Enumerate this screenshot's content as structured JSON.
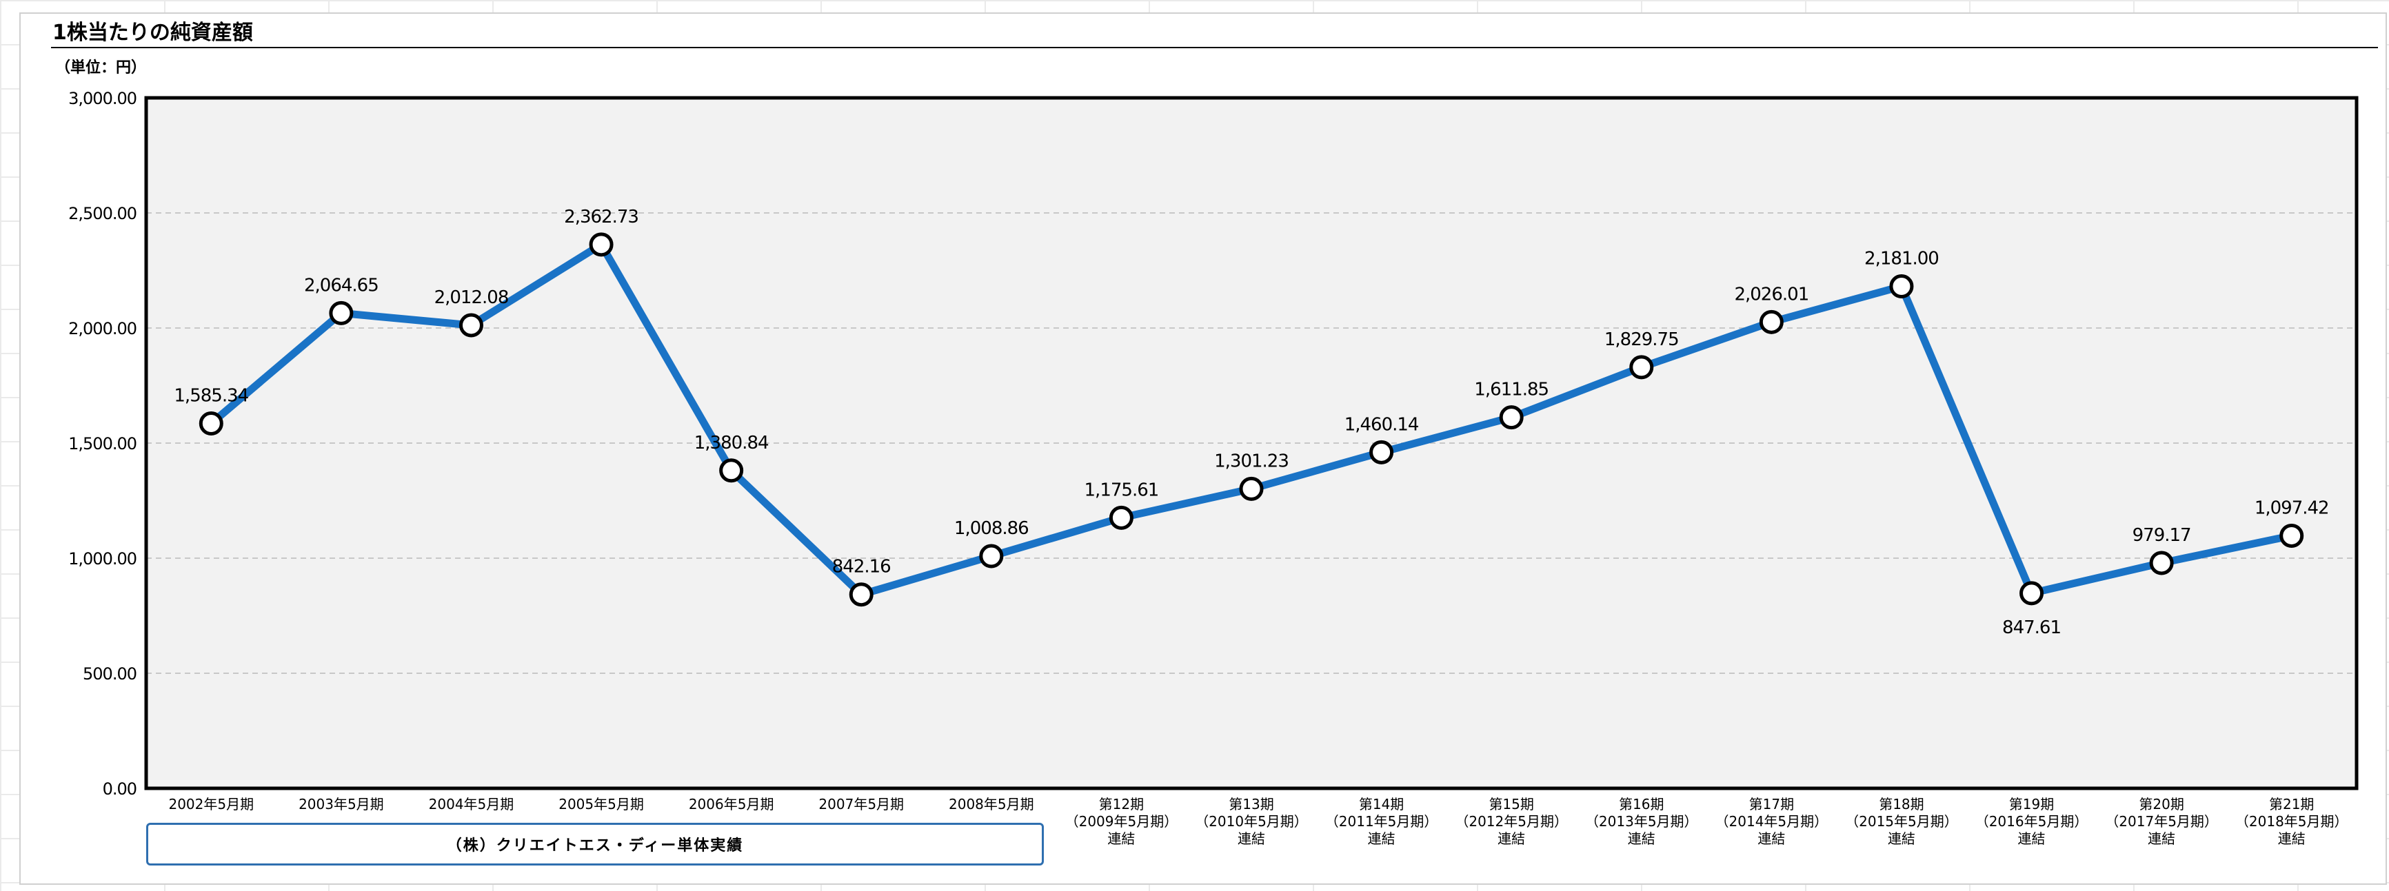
{
  "page": {
    "title": "1株当たりの純資産額",
    "unit_label": "（単位：円）",
    "group_box_label": "（株）クリエイトエス・ディー単体実績"
  },
  "chart_data": {
    "type": "line",
    "title": "1株当たりの純資産額",
    "ylabel": "（単位：円）",
    "xlabel": "",
    "ylim": [
      0,
      3000
    ],
    "yticks": [
      0,
      500,
      1000,
      1500,
      2000,
      2500,
      3000
    ],
    "ytick_labels": [
      "0.00",
      "500.00",
      "1,000.00",
      "1,500.00",
      "2,000.00",
      "2,500.00",
      "3,000.00"
    ],
    "grid": true,
    "line_color": "#1a73c6",
    "marker_fill": "#ffffff",
    "plot_bg": "#f2f2f2",
    "categories": [
      [
        "2002年5月期"
      ],
      [
        "2003年5月期"
      ],
      [
        "2004年5月期"
      ],
      [
        "2005年5月期"
      ],
      [
        "2006年5月期"
      ],
      [
        "2007年5月期"
      ],
      [
        "2008年5月期"
      ],
      [
        "第12期",
        "（2009年5月期）",
        "連結"
      ],
      [
        "第13期",
        "（2010年5月期）",
        "連結"
      ],
      [
        "第14期",
        "（2011年5月期）",
        "連結"
      ],
      [
        "第15期",
        "（2012年5月期）",
        "連結"
      ],
      [
        "第16期",
        "（2013年5月期）",
        "連結"
      ],
      [
        "第17期",
        "（2014年5月期）",
        "連結"
      ],
      [
        "第18期",
        "（2015年5月期）",
        "連結"
      ],
      [
        "第19期",
        "（2016年5月期）",
        "連結"
      ],
      [
        "第20期",
        "（2017年5月期）",
        "連結"
      ],
      [
        "第21期",
        "（2018年5月期）",
        "連結"
      ]
    ],
    "series": [
      {
        "name": "1株当たりの純資産額",
        "values": [
          1585.34,
          2064.65,
          2012.08,
          2362.73,
          1380.84,
          842.16,
          1008.86,
          1175.61,
          1301.23,
          1460.14,
          1611.85,
          1829.75,
          2026.01,
          2181.0,
          847.61,
          979.17,
          1097.42
        ],
        "labels": [
          "1,585.34",
          "2,064.65",
          "2,012.08",
          "2,362.73",
          "1,380.84",
          "842.16",
          "1,008.86",
          "1,175.61",
          "1,301.23",
          "1,460.14",
          "1,611.85",
          "1,829.75",
          "2,026.01",
          "2,181.00",
          "847.61",
          "979.17",
          "1,097.42"
        ],
        "label_positions": [
          "above",
          "above",
          "above",
          "above",
          "above",
          "above",
          "above",
          "above",
          "above",
          "above",
          "above",
          "above",
          "above",
          "above",
          "below",
          "above",
          "above"
        ]
      }
    ]
  }
}
